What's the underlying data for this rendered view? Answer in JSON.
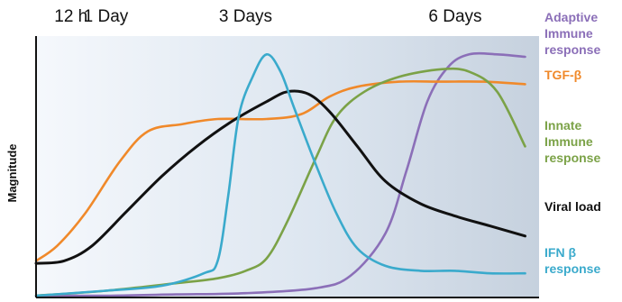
{
  "chart_data": {
    "type": "line",
    "title": "",
    "ylabel": "Magnitude",
    "xlabel": "",
    "x_ticks": [
      {
        "label": "12 h",
        "x": 0.5
      },
      {
        "label": "1 Day",
        "x": 1
      },
      {
        "label": "3 Days",
        "x": 3
      },
      {
        "label": "6 Days",
        "x": 6
      }
    ],
    "xlim": [
      0,
      7.2
    ],
    "ylim": [
      0,
      100
    ],
    "grid": false,
    "legend": "right, labels next to curves",
    "series": [
      {
        "name": "Adaptive Immune response",
        "label_lines": [
          "Adaptive",
          "Immune",
          "response"
        ],
        "color": "#8b6fb8",
        "x": [
          0,
          1,
          2,
          3,
          4,
          4.5,
          5,
          5.3,
          5.6,
          5.9,
          6.2,
          6.6,
          7
        ],
        "y": [
          0,
          0,
          0.5,
          1,
          3,
          8,
          25,
          50,
          78,
          92,
          97,
          97,
          96
        ]
      },
      {
        "name": "TGF-β",
        "label_lines": [
          "TGF-β"
        ],
        "color": "#f0892a",
        "x": [
          0,
          0.3,
          0.7,
          1.2,
          1.6,
          2.1,
          2.6,
          3.3,
          3.8,
          4.2,
          4.6,
          5.2,
          5.8,
          6.4,
          7
        ],
        "y": [
          14,
          20,
          33,
          54,
          66,
          69,
          71,
          71,
          73,
          80,
          84,
          86,
          86,
          86,
          85
        ]
      },
      {
        "name": "Innate Immune response",
        "label_lines": [
          "Innate",
          "Immune",
          "response"
        ],
        "color": "#7ba247",
        "x": [
          0,
          1,
          2,
          2.6,
          3.0,
          3.3,
          3.6,
          4.0,
          4.3,
          4.7,
          5.2,
          5.8,
          6.2,
          6.6,
          7
        ],
        "y": [
          0,
          2,
          5,
          7,
          10,
          15,
          30,
          55,
          72,
          82,
          88,
          91,
          90,
          82,
          60
        ]
      },
      {
        "name": "Viral load",
        "label_lines": [
          "Viral load"
        ],
        "color": "#111111",
        "x": [
          0,
          0.4,
          0.8,
          1.3,
          1.8,
          2.3,
          2.8,
          3.3,
          3.6,
          3.9,
          4.2,
          4.6,
          5.0,
          5.5,
          6.0,
          6.5,
          7
        ],
        "y": [
          13,
          14,
          20,
          34,
          48,
          60,
          70,
          78,
          82,
          81,
          74,
          60,
          46,
          37,
          32,
          28,
          24
        ]
      },
      {
        "name": "IFN β response",
        "label_lines": [
          "IFN β",
          "response"
        ],
        "color": "#3aaacc",
        "x": [
          0,
          1,
          1.8,
          2.4,
          2.6,
          2.75,
          2.9,
          3.1,
          3.3,
          3.5,
          3.7,
          4.0,
          4.3,
          4.6,
          5.0,
          5.5,
          6.0,
          6.5,
          7
        ],
        "y": [
          0,
          2,
          4,
          9,
          14,
          40,
          72,
          88,
          97,
          90,
          75,
          53,
          33,
          19,
          12,
          10,
          10,
          9,
          9
        ]
      }
    ]
  }
}
